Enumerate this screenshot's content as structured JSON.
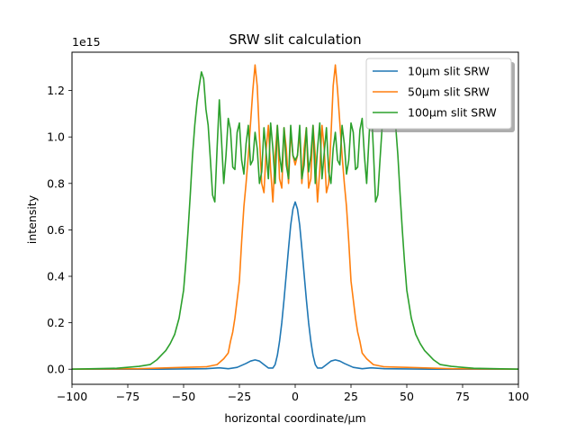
{
  "chart_data": {
    "type": "line",
    "title": "SRW slit calculation",
    "xlabel": "horizontal coordinate/μm",
    "ylabel": "intensity",
    "offset_text": "1e15",
    "xlim": [
      -100,
      100
    ],
    "ylim": [
      -0.065,
      1.365
    ],
    "xticks": [
      -100,
      -75,
      -50,
      -25,
      0,
      25,
      50,
      75,
      100
    ],
    "xtick_labels": [
      "−100",
      "−75",
      "−50",
      "−25",
      "0",
      "25",
      "50",
      "75",
      "100"
    ],
    "yticks": [
      0.0,
      0.2,
      0.4,
      0.6,
      0.8,
      1.0,
      1.2
    ],
    "ytick_labels": [
      "0.0",
      "0.2",
      "0.4",
      "0.6",
      "0.8",
      "1.0",
      "1.2"
    ],
    "legend_position": "top-right",
    "grid": false,
    "series": [
      {
        "name": "10μm slit SRW",
        "color": "#1f77b4",
        "x": [
          -100,
          -60,
          -40,
          -34,
          -30,
          -26,
          -22,
          -20,
          -18,
          -16,
          -14,
          -12,
          -10,
          -9,
          -8,
          -7,
          -6,
          -5,
          -4,
          -3,
          -2,
          -1,
          0,
          1,
          2,
          3,
          4,
          5,
          6,
          7,
          8,
          9,
          10,
          12,
          14,
          16,
          18,
          20,
          22,
          26,
          30,
          34,
          40,
          60,
          100
        ],
        "y": [
          0,
          0,
          0.002,
          0.006,
          0.002,
          0.008,
          0.025,
          0.035,
          0.04,
          0.035,
          0.02,
          0.005,
          0.005,
          0.02,
          0.06,
          0.12,
          0.2,
          0.3,
          0.41,
          0.52,
          0.62,
          0.69,
          0.72,
          0.69,
          0.62,
          0.52,
          0.41,
          0.3,
          0.2,
          0.12,
          0.06,
          0.02,
          0.005,
          0.005,
          0.02,
          0.035,
          0.04,
          0.035,
          0.025,
          0.008,
          0.002,
          0.006,
          0.002,
          0,
          0
        ]
      },
      {
        "name": "50μm slit SRW",
        "color": "#ff7f0e",
        "x": [
          -100,
          -70,
          -50,
          -40,
          -35,
          -32,
          -30,
          -29,
          -28,
          -27,
          -26,
          -25,
          -24,
          -23,
          -22,
          -21,
          -20,
          -19,
          -18,
          -17,
          -16,
          -15,
          -14,
          -13,
          -12,
          -11,
          -10,
          -9,
          -8,
          -7,
          -6,
          -5,
          -4,
          -3,
          -2,
          -1,
          0,
          1,
          2,
          3,
          4,
          5,
          6,
          7,
          8,
          9,
          10,
          11,
          12,
          13,
          14,
          15,
          16,
          17,
          18,
          19,
          20,
          21,
          22,
          23,
          24,
          25,
          26,
          27,
          28,
          29,
          30,
          32,
          35,
          40,
          50,
          70,
          100
        ],
        "y": [
          0,
          0.002,
          0.008,
          0.01,
          0.02,
          0.045,
          0.07,
          0.12,
          0.16,
          0.22,
          0.3,
          0.38,
          0.55,
          0.7,
          0.8,
          0.92,
          1.06,
          1.2,
          1.31,
          1.22,
          1.0,
          0.8,
          0.76,
          0.95,
          1.05,
          0.86,
          0.72,
          0.92,
          1.05,
          0.82,
          0.78,
          1.04,
          0.95,
          0.8,
          1.02,
          0.92,
          0.88,
          0.92,
          1.02,
          0.8,
          0.95,
          1.04,
          0.78,
          0.82,
          1.05,
          0.92,
          0.72,
          0.86,
          1.05,
          0.95,
          0.76,
          0.8,
          1.0,
          1.22,
          1.31,
          1.2,
          1.06,
          0.92,
          0.8,
          0.7,
          0.55,
          0.38,
          0.3,
          0.22,
          0.16,
          0.12,
          0.07,
          0.045,
          0.02,
          0.01,
          0.008,
          0.002,
          0
        ]
      },
      {
        "name": "100μm slit SRW",
        "color": "#2ca02c",
        "x": [
          -100,
          -80,
          -70,
          -65,
          -62,
          -60,
          -58,
          -56,
          -54,
          -52,
          -50,
          -49,
          -48,
          -47,
          -46,
          -45,
          -44,
          -43,
          -42,
          -41,
          -40,
          -39,
          -38,
          -37,
          -36,
          -35,
          -34,
          -33,
          -32,
          -31,
          -30,
          -29,
          -28,
          -27,
          -26,
          -25,
          -24,
          -23,
          -22,
          -21,
          -20,
          -19,
          -18,
          -17,
          -16,
          -15,
          -14,
          -13,
          -12,
          -11,
          -10,
          -9,
          -8,
          -7,
          -6,
          -5,
          -4,
          -3,
          -2,
          -1,
          0,
          1,
          2,
          3,
          4,
          5,
          6,
          7,
          8,
          9,
          10,
          11,
          12,
          13,
          14,
          15,
          16,
          17,
          18,
          19,
          20,
          21,
          22,
          23,
          24,
          25,
          26,
          27,
          28,
          29,
          30,
          31,
          32,
          33,
          34,
          35,
          36,
          37,
          38,
          39,
          40,
          41,
          42,
          43,
          44,
          45,
          46,
          47,
          48,
          49,
          50,
          52,
          54,
          56,
          58,
          60,
          62,
          65,
          70,
          80,
          100
        ],
        "y": [
          0,
          0.004,
          0.012,
          0.02,
          0.04,
          0.06,
          0.08,
          0.11,
          0.15,
          0.22,
          0.34,
          0.46,
          0.6,
          0.75,
          0.92,
          1.05,
          1.15,
          1.22,
          1.28,
          1.25,
          1.12,
          1.05,
          0.9,
          0.75,
          0.72,
          0.95,
          1.16,
          0.98,
          0.8,
          0.92,
          1.08,
          1.03,
          0.87,
          0.86,
          1.02,
          1.06,
          0.9,
          0.84,
          0.97,
          1.05,
          0.88,
          0.9,
          1.02,
          0.95,
          0.8,
          0.85,
          1.04,
          0.93,
          0.82,
          1.06,
          0.95,
          0.8,
          1.05,
          0.92,
          0.85,
          1.04,
          0.88,
          0.82,
          1.05,
          0.92,
          0.9,
          0.92,
          1.05,
          0.82,
          0.88,
          1.04,
          0.85,
          0.92,
          1.05,
          0.8,
          0.95,
          1.06,
          0.82,
          0.93,
          1.04,
          0.85,
          0.8,
          0.95,
          1.02,
          0.9,
          0.88,
          1.05,
          0.97,
          0.84,
          0.9,
          1.06,
          1.02,
          0.86,
          0.87,
          1.03,
          1.08,
          0.92,
          0.8,
          0.98,
          1.16,
          0.95,
          0.72,
          0.75,
          0.9,
          1.05,
          1.12,
          1.25,
          1.28,
          1.22,
          1.15,
          1.05,
          0.92,
          0.75,
          0.6,
          0.46,
          0.34,
          0.22,
          0.15,
          0.11,
          0.08,
          0.06,
          0.04,
          0.02,
          0.012,
          0.004,
          0
        ]
      }
    ]
  }
}
